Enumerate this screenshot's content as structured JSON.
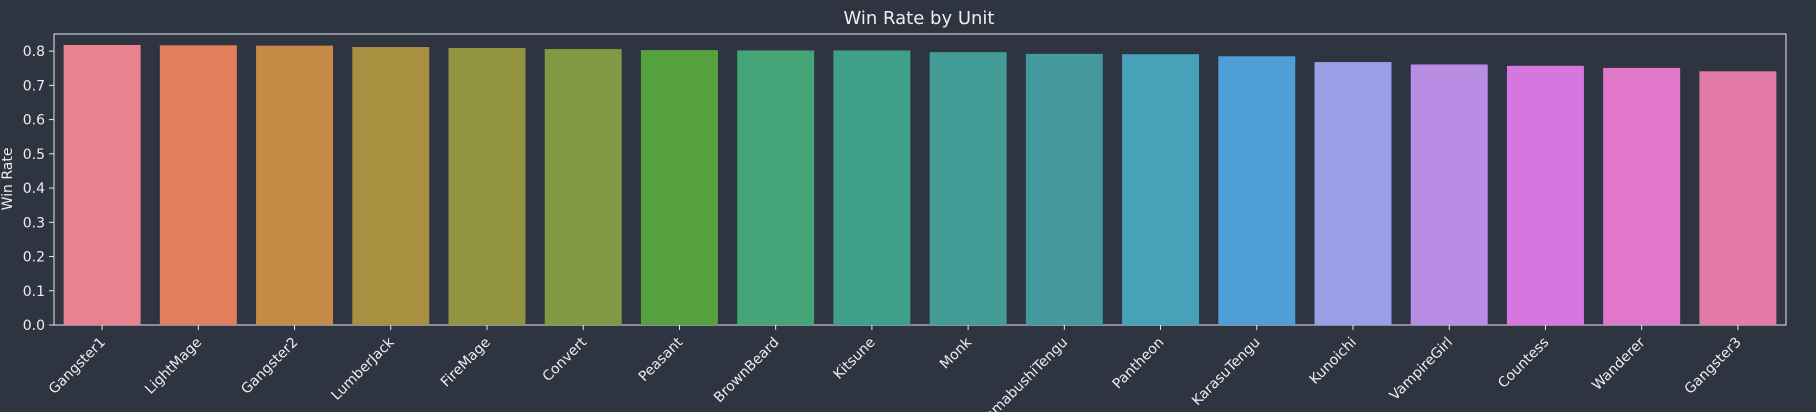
{
  "chart_data": {
    "type": "bar",
    "title": "Win Rate by Unit",
    "xlabel": "",
    "ylabel": "Win Rate",
    "ylim": [
      0,
      0.85
    ],
    "yticks": [
      "0.0",
      "0.1",
      "0.2",
      "0.3",
      "0.4",
      "0.5",
      "0.6",
      "0.7",
      "0.8"
    ],
    "grid": false,
    "categories": [
      "Gangster1",
      "LightMage",
      "Gangster2",
      "LumberJack",
      "FireMage",
      "Convert",
      "Peasant",
      "BrownBeard",
      "Kitsune",
      "Monk",
      "YamabushiTengu",
      "Pantheon",
      "KarasuTengu",
      "Kunoichi",
      "VampireGirl",
      "Countess",
      "Wanderer",
      "Gangster3"
    ],
    "values": [
      0.818,
      0.817,
      0.816,
      0.812,
      0.809,
      0.806,
      0.803,
      0.802,
      0.802,
      0.797,
      0.792,
      0.791,
      0.785,
      0.768,
      0.761,
      0.757,
      0.751,
      0.741
    ],
    "colors": [
      "#e8828f",
      "#e27f5a",
      "#c48a46",
      "#a98f40",
      "#939440",
      "#7f9a43",
      "#56a140",
      "#45a578",
      "#3e9f8b",
      "#439d96",
      "#43999e",
      "#47a1b8",
      "#4f9fd6",
      "#989fe6",
      "#b98de3",
      "#d676df",
      "#e077c9",
      "#e47ba6"
    ],
    "colors_theme": {
      "background": "#2e3440",
      "text": "#eceff4",
      "axis": "#e5e9f0"
    }
  }
}
